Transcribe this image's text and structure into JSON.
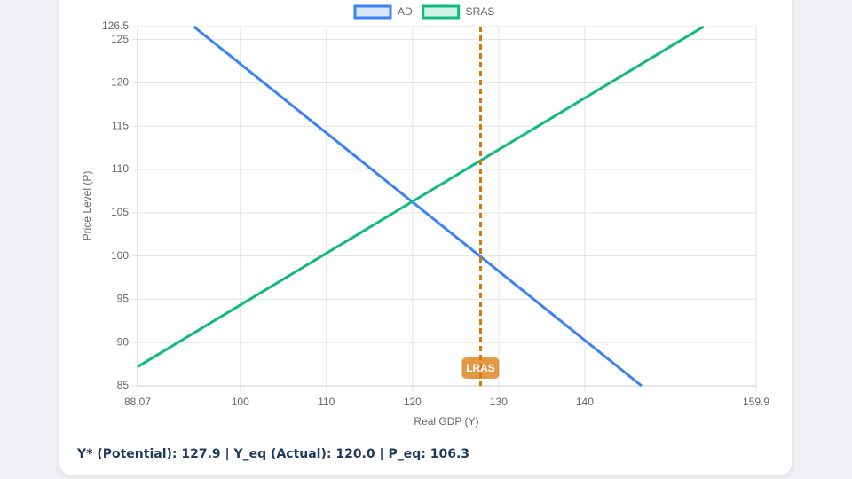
{
  "chart_data": {
    "type": "line",
    "x_label": "Real GDP (Y)",
    "y_label": "Price Level (P)",
    "xlim": [
      88.07,
      159.9
    ],
    "xticks": [
      88.07,
      100,
      110,
      120,
      130,
      140,
      159.9
    ],
    "ylim": [
      85,
      126.5
    ],
    "yticks": [
      85,
      90,
      95,
      100,
      105,
      110,
      115,
      120,
      125,
      126.5
    ],
    "grid": true,
    "legend": "top",
    "series": [
      {
        "name": "AD",
        "color": "#3b82f6",
        "x": [
          94.6,
          146.6
        ],
        "values": [
          126.5,
          85
        ]
      },
      {
        "name": "SRAS",
        "color": "#10b981",
        "x": [
          88.07,
          120,
          153.8
        ],
        "values": [
          87.2,
          106.3,
          126.5
        ]
      }
    ],
    "vline": {
      "label": "LRAS",
      "x": 127.9,
      "color": "#d97706"
    },
    "footer": "Y* (Potential): 127.9 | Y_eq (Actual): 120.0 | P_eq: 106.3"
  }
}
